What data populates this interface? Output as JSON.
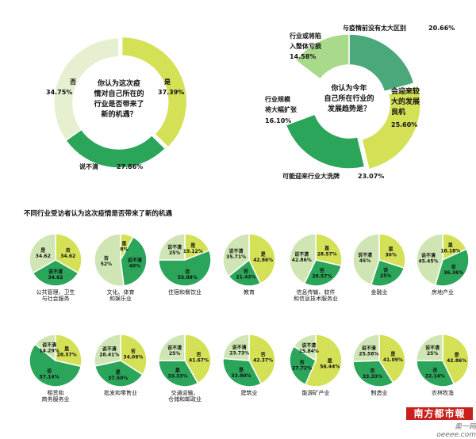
{
  "section_title": "不同行业受访者认为这次疫情是否带来了新的机遇",
  "colors": {
    "green_dark": "#2aa55a",
    "green_mid": "#3db968",
    "green_teal": "#4ba87a",
    "green_light": "#a9d98b",
    "green_pale": "#cfe6b4",
    "lime": "#d4e157",
    "gray_green": "#c9ddb0"
  },
  "branding": {
    "logo": "南方都市報",
    "site": "奥一网 oeeee.com"
  },
  "chart_data": [
    {
      "type": "pie",
      "donut": true,
      "title": "你认为这次疫情对自己所在的行业是否带来了新的机遇？",
      "center_lines": [
        "你认为这次疫",
        "情对自己所在的",
        "行业是否带来了",
        "新的机遇？"
      ],
      "slices": [
        {
          "name": "是",
          "value": 37.39,
          "label": "37.39%",
          "color": "#d4e157"
        },
        {
          "name": "说不清",
          "value": 27.86,
          "label": "27.86%",
          "color": "#2aa55a"
        },
        {
          "name": "否",
          "value": 34.75,
          "label": "34.75%",
          "color": "#e6f0d0"
        }
      ]
    },
    {
      "type": "pie",
      "donut": true,
      "title": "你认为今年自己所在行业的发展趋势是？",
      "center_lines": [
        "你认为今年",
        "自己所在行业的",
        "发展趋势是？"
      ],
      "slices": [
        {
          "name": "与疫情前没有太大区别",
          "value": 20.66,
          "label": "20.66%",
          "color": "#4ba87a"
        },
        {
          "name": "会迎来较大的发展良机",
          "value": 25.6,
          "label": "25.60%",
          "color": "#d4e157"
        },
        {
          "name": "可能迎来行业大洗牌",
          "value": 23.07,
          "label": "23.07%",
          "color": "#2aa55a"
        },
        {
          "name": "行业规模将大幅扩张",
          "value": 16.1,
          "label": "16.10%",
          "color": "#ffffff"
        },
        {
          "name": "行业或将陷入整体亏损",
          "value": 14.58,
          "label": "14.58%",
          "color": "#a9d98b"
        }
      ],
      "label_texts": {
        "s0": "与疫情前没有太大区别",
        "s1a": "会迎来较",
        "s1b": "大的发展",
        "s1c": "良机",
        "s2": "可能迎来行业大洗牌",
        "s3a": "行业规模",
        "s3b": "将大幅扩张",
        "s4a": "行业或将陷",
        "s4b": "入整体亏损"
      }
    },
    {
      "type": "pie",
      "title": "公共管理、卫生与社会服务",
      "caption_lines": [
        "公共管理、卫生",
        "与社会服务"
      ],
      "slices": [
        {
          "name": "否",
          "value": 34.62,
          "label": "34.62",
          "color": "#d4e157"
        },
        {
          "name": "说不清",
          "value": 34.62,
          "label": "34.62",
          "color": "#2aa55a"
        },
        {
          "name": "是",
          "value": 34.62,
          "label": "34.62",
          "color": "#cfe6b4"
        }
      ]
    },
    {
      "type": "pie",
      "title": "文化、体育和娱乐业",
      "caption_lines": [
        "文化、体育",
        "和娱乐业"
      ],
      "slices": [
        {
          "name": "是",
          "value": 8,
          "label": "8%",
          "color": "#d4e157"
        },
        {
          "name": "说不清",
          "value": 40,
          "label": "40%",
          "color": "#2aa55a"
        },
        {
          "name": "否",
          "value": 52,
          "label": "52%",
          "color": "#cfe6b4"
        }
      ]
    },
    {
      "type": "pie",
      "title": "住宿和餐饮业",
      "caption_lines": [
        "住宿和餐饮业"
      ],
      "slices": [
        {
          "name": "是",
          "value": 19.12,
          "label": "19.12%",
          "color": "#d4e157"
        },
        {
          "name": "否",
          "value": 55.88,
          "label": "55.88%",
          "color": "#2aa55a"
        },
        {
          "name": "说不清",
          "value": 25,
          "label": "25%",
          "color": "#cfe6b4"
        }
      ]
    },
    {
      "type": "pie",
      "title": "教育",
      "caption_lines": [
        "教育"
      ],
      "slices": [
        {
          "name": "是",
          "value": 42.86,
          "label": "42.86%",
          "color": "#d4e157"
        },
        {
          "name": "否",
          "value": 21.43,
          "label": "21.43%",
          "color": "#2aa55a"
        },
        {
          "name": "说不清",
          "value": 35.71,
          "label": "35.71%",
          "color": "#cfe6b4"
        }
      ]
    },
    {
      "type": "pie",
      "title": "信息传输、软件和信息技术服务业",
      "caption_lines": [
        "信息传输、软件",
        "和信息技术服务业"
      ],
      "slices": [
        {
          "name": "是",
          "value": 28.57,
          "label": "28.57%",
          "color": "#d4e157"
        },
        {
          "name": "否",
          "value": 28.57,
          "label": "28.57%",
          "color": "#2aa55a"
        },
        {
          "name": "说不清",
          "value": 42.86,
          "label": "42.86%",
          "color": "#cfe6b4"
        }
      ]
    },
    {
      "type": "pie",
      "title": "金融业",
      "caption_lines": [
        "金融业"
      ],
      "slices": [
        {
          "name": "是",
          "value": 30,
          "label": "30%",
          "color": "#d4e157"
        },
        {
          "name": "否",
          "value": 25,
          "label": "25%",
          "color": "#2aa55a"
        },
        {
          "name": "说不清",
          "value": 45,
          "label": "45%",
          "color": "#cfe6b4"
        }
      ]
    },
    {
      "type": "pie",
      "title": "房地产业",
      "caption_lines": [
        "房地产业"
      ],
      "slices": [
        {
          "name": "是",
          "value": 18.18,
          "label": "18.18%",
          "color": "#d4e157"
        },
        {
          "name": "否",
          "value": 36.36,
          "label": "36.36%",
          "color": "#2aa55a"
        },
        {
          "name": "说不清",
          "value": 45.45,
          "label": "45.45%",
          "color": "#cfe6b4"
        }
      ]
    },
    {
      "type": "pie",
      "title": "租赁和商务服务业",
      "caption_lines": [
        "租赁和",
        "商务服务业"
      ],
      "slices": [
        {
          "name": "是",
          "value": 28.57,
          "label": "28.57%",
          "color": "#d4e157"
        },
        {
          "name": "否",
          "value": 57.14,
          "label": "57.14%",
          "color": "#2aa55a"
        },
        {
          "name": "说不清",
          "value": 14.29,
          "label": "14.29%",
          "color": "#cfe6b4"
        }
      ]
    },
    {
      "type": "pie",
      "title": "批发和零售业",
      "caption_lines": [
        "批发和零售业"
      ],
      "slices": [
        {
          "name": "否",
          "value": 34.09,
          "label": "34.09%",
          "color": "#d4e157"
        },
        {
          "name": "是",
          "value": 37.5,
          "label": "37.50%",
          "color": "#2aa55a"
        },
        {
          "name": "说不清",
          "value": 28.41,
          "label": "28.41%",
          "color": "#cfe6b4"
        }
      ]
    },
    {
      "type": "pie",
      "title": "交通运输、仓储和邮政业",
      "caption_lines": [
        "交通运输、",
        "仓储和邮政业"
      ],
      "slices": [
        {
          "name": "否",
          "value": 41.67,
          "label": "41.67%",
          "color": "#d4e157"
        },
        {
          "name": "是",
          "value": 33.33,
          "label": "33.33%",
          "color": "#2aa55a"
        },
        {
          "name": "说不清",
          "value": 25,
          "label": "25%",
          "color": "#cfe6b4"
        }
      ]
    },
    {
      "type": "pie",
      "title": "建筑业",
      "caption_lines": [
        "建筑业"
      ],
      "slices": [
        {
          "name": "否",
          "value": 42.37,
          "label": "42.37%",
          "color": "#d4e157"
        },
        {
          "name": "是",
          "value": 33.9,
          "label": "33.90%",
          "color": "#2aa55a"
        },
        {
          "name": "说不清",
          "value": 23.73,
          "label": "23.73%",
          "color": "#cfe6b4"
        }
      ]
    },
    {
      "type": "pie",
      "title": "能源矿产业",
      "caption_lines": [
        "能源矿产业"
      ],
      "slices": [
        {
          "name": "是",
          "value": 56.44,
          "label": "56.44%",
          "color": "#d4e157"
        },
        {
          "name": "否",
          "value": 27.72,
          "label": "27.72%",
          "color": "#2aa55a"
        },
        {
          "name": "说不清",
          "value": 15.84,
          "label": "15.84%",
          "color": "#cfe6b4"
        }
      ]
    },
    {
      "type": "pie",
      "title": "制造业",
      "caption_lines": [
        "制造业"
      ],
      "slices": [
        {
          "name": "是",
          "value": 41.09,
          "label": "41.09%",
          "color": "#d4e157"
        },
        {
          "name": "否",
          "value": 33.33,
          "label": "33.33%",
          "color": "#2aa55a"
        },
        {
          "name": "说不清",
          "value": 25.58,
          "label": "25.58%",
          "color": "#cfe6b4"
        }
      ]
    },
    {
      "type": "pie",
      "title": "农林牧渔",
      "caption_lines": [
        "农林牧渔"
      ],
      "slices": [
        {
          "name": "是",
          "value": 42.86,
          "label": "42.86%",
          "color": "#d4e157"
        },
        {
          "name": "否",
          "value": 32.14,
          "label": "32.14%",
          "color": "#2aa55a"
        },
        {
          "name": "说不清",
          "value": 25,
          "label": "25%",
          "color": "#cfe6b4"
        }
      ]
    }
  ]
}
